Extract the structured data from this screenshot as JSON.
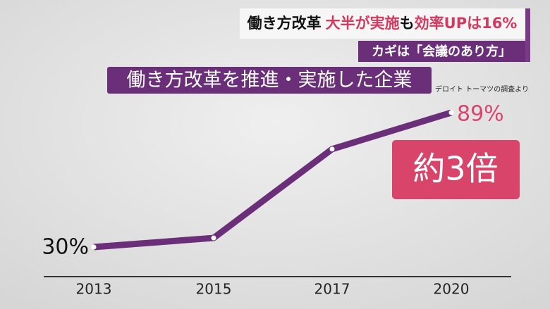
{
  "headline": [
    "働き方改革",
    "大半が実施",
    "も",
    "効率UPは16%"
  ],
  "subheadline": "カギは「会議のあり方」",
  "chart_data": {
    "type": "line",
    "title": "働き方改革を推進・実施した企業",
    "source": "デロイト トーマツの調査より",
    "annotation": "約3倍",
    "categories": [
      "2013",
      "2015",
      "2017",
      "2020"
    ],
    "series": [
      {
        "color": "#6b2f7a",
        "values": [
          30,
          34,
          73,
          89
        ],
        "value_labels": [
          "30%",
          null,
          null,
          "89%"
        ]
      }
    ]
  }
}
